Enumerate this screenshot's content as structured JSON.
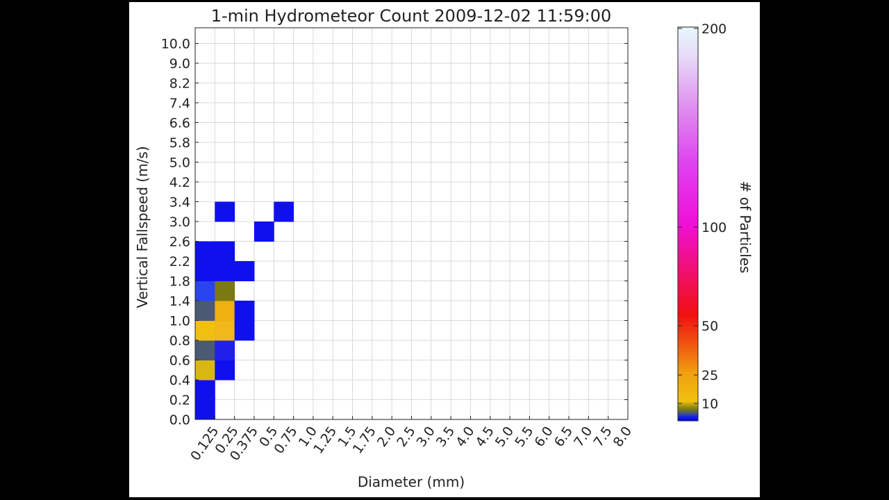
{
  "chart_data": {
    "type": "heatmap",
    "title": "1-min Hydrometeor Count 2009-12-02 11:59:00",
    "xlabel": "Diameter (mm)",
    "ylabel": "Vertical Fallspeed (m/s)",
    "x_ticks": [
      "0.125",
      "0.25",
      "0.375",
      "0.5",
      "0.75",
      "1.0",
      "1.25",
      "1.5",
      "1.75",
      "2.0",
      "2.5",
      "3.0",
      "3.5",
      "4.0",
      "4.5",
      "5.0",
      "5.5",
      "6.0",
      "6.5",
      "7.0",
      "7.5",
      "8.0"
    ],
    "y_ticks": [
      "0.0",
      "0.2",
      "0.4",
      "0.6",
      "0.8",
      "1.0",
      "1.4",
      "1.8",
      "2.2",
      "2.6",
      "3.0",
      "3.4",
      "4.2",
      "5.0",
      "5.8",
      "6.6",
      "7.4",
      "8.2",
      "9.0",
      "10.0"
    ],
    "grid": true,
    "colorbar": {
      "label": "# of Particles",
      "ticks": [
        "10",
        "25",
        "50",
        "100",
        "200"
      ],
      "tick_values": [
        10,
        25,
        50,
        100,
        200
      ],
      "range": [
        0,
        200
      ]
    },
    "cells": [
      {
        "x": "0.125",
        "y": "0.2",
        "count": 1
      },
      {
        "x": "0.125",
        "y": "0.4",
        "count": 1
      },
      {
        "x": "0.125",
        "y": "0.6",
        "count": 11
      },
      {
        "x": "0.125",
        "y": "0.8",
        "count": 5
      },
      {
        "x": "0.125",
        "y": "1.0",
        "count": 13
      },
      {
        "x": "0.125",
        "y": "1.4",
        "count": 5
      },
      {
        "x": "0.125",
        "y": "1.8",
        "count": 3
      },
      {
        "x": "0.125",
        "y": "2.2",
        "count": 1
      },
      {
        "x": "0.125",
        "y": "2.6",
        "count": 1
      },
      {
        "x": "0.25",
        "y": "0.6",
        "count": 1
      },
      {
        "x": "0.25",
        "y": "0.8",
        "count": 2
      },
      {
        "x": "0.25",
        "y": "1.0",
        "count": 14
      },
      {
        "x": "0.25",
        "y": "1.4",
        "count": 16
      },
      {
        "x": "0.25",
        "y": "1.8",
        "count": 8
      },
      {
        "x": "0.25",
        "y": "2.2",
        "count": 1
      },
      {
        "x": "0.25",
        "y": "2.6",
        "count": 1
      },
      {
        "x": "0.25",
        "y": "3.4",
        "count": 1
      },
      {
        "x": "0.375",
        "y": "1.0",
        "count": 1
      },
      {
        "x": "0.375",
        "y": "1.4",
        "count": 1
      },
      {
        "x": "0.375",
        "y": "2.2",
        "count": 1
      },
      {
        "x": "0.5",
        "y": "3.0",
        "count": 1
      },
      {
        "x": "0.75",
        "y": "3.4",
        "count": 1
      }
    ],
    "colors": {
      "1": "#1010ee",
      "2": "#2020e8",
      "3": "#2a44ee",
      "5": "#4a5a72",
      "8": "#7a7a10",
      "11": "#d8b810",
      "13": "#f0c010",
      "14": "#f0b818",
      "16": "#f0b010"
    }
  }
}
